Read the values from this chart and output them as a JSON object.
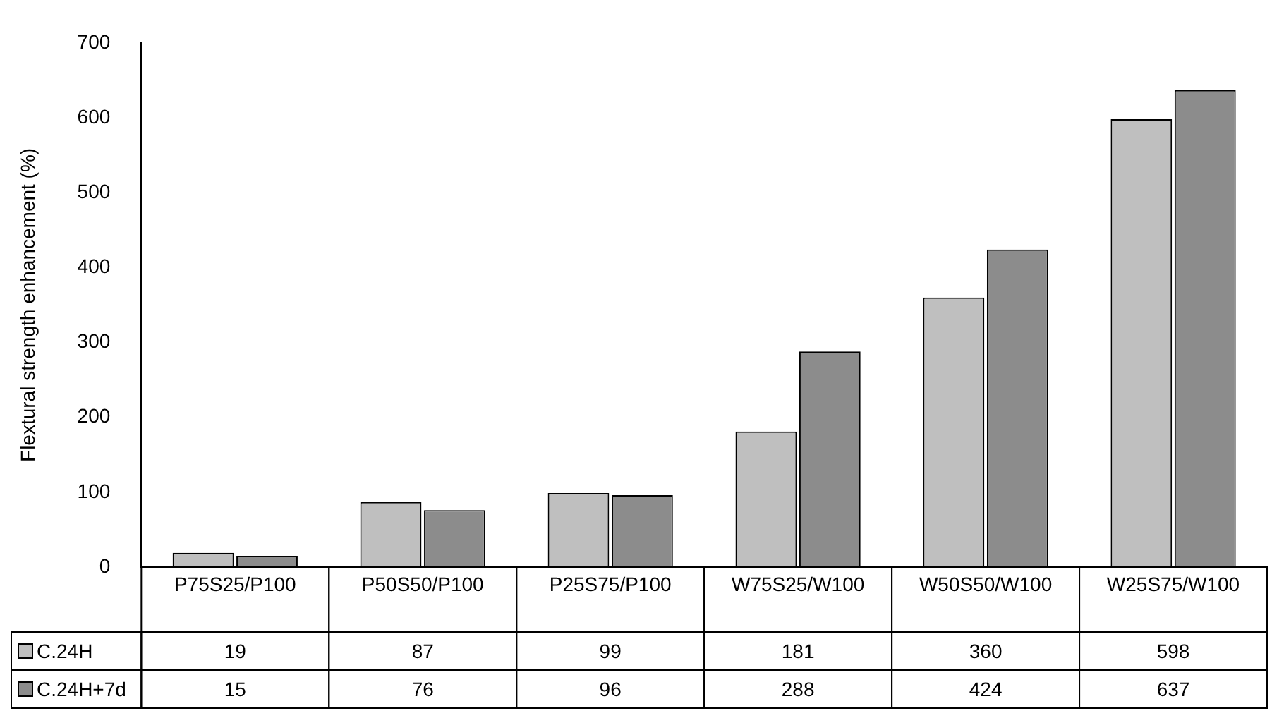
{
  "chart_data": {
    "type": "bar",
    "ylabel": "Flextural strength enhancement (%)",
    "categories": [
      "P75S25/P100",
      "P50S50/P100",
      "P25S75/P100",
      "W75S25/W100",
      "W50S50/W100",
      "W25S75/W100"
    ],
    "series": [
      {
        "name": "C.24H",
        "color": "#bfbfbf",
        "values": [
          19,
          87,
          99,
          181,
          360,
          598
        ]
      },
      {
        "name": "C.24H+7d",
        "color": "#8c8c8c",
        "values": [
          15,
          76,
          96,
          288,
          424,
          637
        ]
      }
    ],
    "ylim": [
      0,
      700
    ],
    "yticks": [
      0,
      100,
      200,
      300,
      400,
      500,
      600,
      700
    ],
    "grid": false,
    "legend": "bottom left",
    "data_labels": true
  }
}
